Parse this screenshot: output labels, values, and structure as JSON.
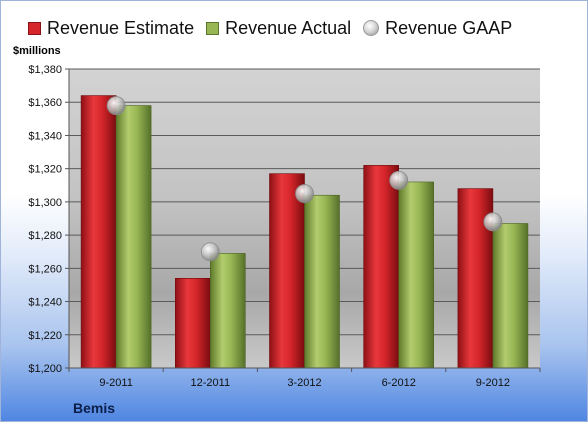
{
  "chart_data": {
    "type": "bar",
    "title": "",
    "ylabel": "$millions",
    "xlabel": "",
    "ylim": [
      1200,
      1380
    ],
    "ytick_step": 20,
    "categories": [
      "9-2011",
      "12-2011",
      "3-2012",
      "6-2012",
      "9-2012"
    ],
    "series": [
      {
        "name": "Revenue Estimate",
        "type": "bar",
        "color": "#d6262c",
        "values": [
          1364,
          1254,
          1317,
          1322,
          1308
        ]
      },
      {
        "name": "Revenue Actual",
        "type": "bar",
        "color": "#98b653",
        "values": [
          1358,
          1269,
          1304,
          1312,
          1287
        ]
      },
      {
        "name": "Revenue GAAP",
        "type": "marker",
        "color": "#c8c8c8",
        "values": [
          1358,
          1270,
          1305,
          1313,
          1288
        ]
      }
    ],
    "legend_position": "top",
    "grid": true,
    "footer": "Bemis"
  }
}
